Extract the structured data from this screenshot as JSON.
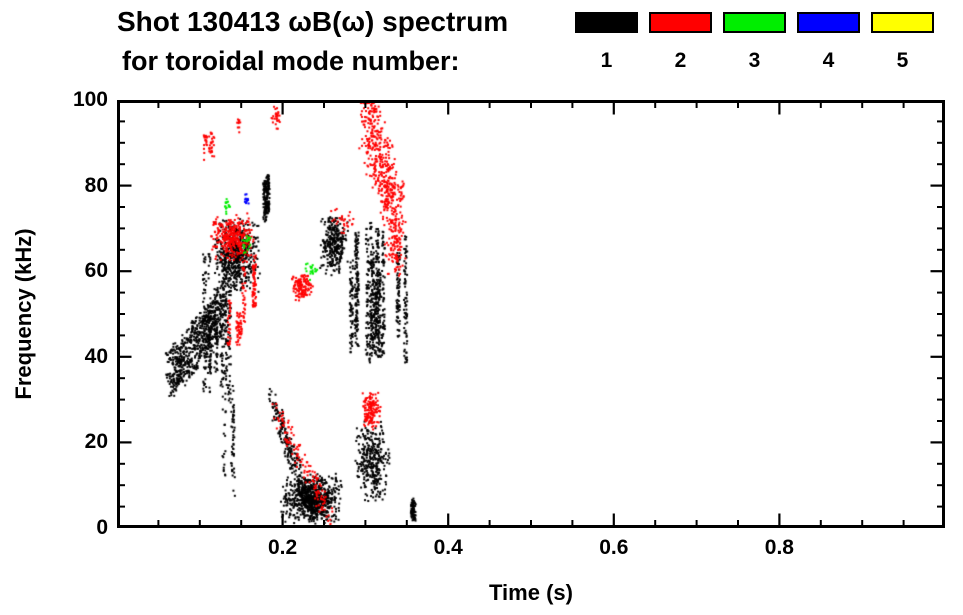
{
  "chart_data": {
    "type": "scatter",
    "title": "Shot 130413 ωB(ω) spectrum",
    "subtitle": "for toroidal mode number:",
    "xlabel": "Time (s)",
    "ylabel": "Frequency (kHz)",
    "xlim": [
      0,
      1.0
    ],
    "ylim": [
      0,
      100
    ],
    "x_major_ticks": {
      "values": [
        0.2,
        0.4,
        0.6,
        0.8
      ],
      "labels": [
        "0.2",
        "0.4",
        "0.6",
        "0.8"
      ]
    },
    "x_minor_step": 0.05,
    "y_major_ticks": {
      "values": [
        0,
        20,
        40,
        60,
        80,
        100
      ],
      "labels": [
        "0",
        "20",
        "40",
        "60",
        "80",
        "100"
      ]
    },
    "y_minor_step": 5,
    "legend": [
      {
        "mode": "1",
        "color": "#000000"
      },
      {
        "mode": "2",
        "color": "#ff0000"
      },
      {
        "mode": "3",
        "color": "#00ee00"
      },
      {
        "mode": "4",
        "color": "#0000ff"
      },
      {
        "mode": "5",
        "color": "#ffff00"
      }
    ],
    "series": [
      {
        "name": "toroidal mode n=1",
        "color": "#000000",
        "clusters": [
          {
            "kind": "line",
            "t": [
              0.063,
              0.125
            ],
            "f": [
              36,
              50
            ],
            "jt": 0.006,
            "jf": 5.5,
            "n": 650
          },
          {
            "kind": "streaks",
            "t": [
              0.1,
              0.145
            ],
            "f": [
              28,
              66
            ],
            "n": 350,
            "streaks": 8
          },
          {
            "kind": "blob",
            "t": [
              0.115,
              0.172
            ],
            "f": [
              55,
              73
            ],
            "n": 600
          },
          {
            "kind": "streaks",
            "t": [
              0.124,
              0.14
            ],
            "f": [
              3,
              36
            ],
            "n": 70,
            "streaks": 3
          },
          {
            "kind": "streaks",
            "t": [
              0.176,
              0.19
            ],
            "f": [
              68,
              86
            ],
            "n": 170,
            "streaks": 2
          },
          {
            "kind": "line",
            "t": [
              0.186,
              0.235
            ],
            "f": [
              30,
              4
            ],
            "jt": 0.004,
            "jf": 3,
            "n": 260
          },
          {
            "kind": "blob",
            "t": [
              0.196,
              0.274
            ],
            "f": [
              1,
              13
            ],
            "n": 700
          },
          {
            "kind": "blob",
            "t": [
              0.243,
              0.278
            ],
            "f": [
              59,
              74
            ],
            "n": 300
          },
          {
            "kind": "streaks",
            "t": [
              0.278,
              0.35
            ],
            "f": [
              34,
              72
            ],
            "n": 850,
            "streaks": 12
          },
          {
            "kind": "blob",
            "t": [
              0.285,
              0.33
            ],
            "f": [
              6,
              26
            ],
            "n": 330
          },
          {
            "kind": "streaks",
            "t": [
              0.343,
              0.358
            ],
            "f": [
              1,
              9
            ],
            "n": 90,
            "streaks": 2
          }
        ]
      },
      {
        "name": "toroidal mode n=2",
        "color": "#ff0000",
        "clusters": [
          {
            "kind": "streaks",
            "t": [
              0.1,
              0.118
            ],
            "f": [
              86,
              94
            ],
            "n": 45,
            "streaks": 3
          },
          {
            "kind": "blob",
            "t": [
              0.11,
              0.168
            ],
            "f": [
              62,
              74
            ],
            "n": 320
          },
          {
            "kind": "streaks",
            "t": [
              0.132,
              0.148
            ],
            "f": [
              38,
              56
            ],
            "n": 80,
            "streaks": 3
          },
          {
            "kind": "streaks",
            "t": [
              0.152,
              0.17
            ],
            "f": [
              48,
              68
            ],
            "n": 110,
            "streaks": 3
          },
          {
            "kind": "blob",
            "t": [
              0.142,
              0.149
            ],
            "f": [
              92,
              97
            ],
            "n": 10
          },
          {
            "kind": "blob",
            "t": [
              0.185,
              0.196
            ],
            "f": [
              93,
              99
            ],
            "n": 28
          },
          {
            "kind": "blob",
            "t": [
              0.208,
              0.236
            ],
            "f": [
              53,
              60
            ],
            "n": 130
          },
          {
            "kind": "line",
            "t": [
              0.19,
              0.256
            ],
            "f": [
              28,
              3
            ],
            "jt": 0.004,
            "jf": 2.5,
            "n": 130
          },
          {
            "kind": "blob",
            "t": [
              0.293,
              0.318
            ],
            "f": [
              23,
              33
            ],
            "n": 140
          },
          {
            "kind": "line",
            "t": [
              0.298,
              0.341
            ],
            "f": [
              97,
              71
            ],
            "jt": 0.007,
            "jf": 9,
            "n": 500
          },
          {
            "kind": "blob",
            "t": [
              0.322,
              0.346
            ],
            "f": [
              58,
              70
            ],
            "n": 60
          },
          {
            "kind": "blob",
            "t": [
              0.255,
              0.285
            ],
            "f": [
              68,
              76
            ],
            "n": 28
          }
        ]
      },
      {
        "name": "toroidal mode n=3",
        "color": "#00ee00",
        "clusters": [
          {
            "kind": "blob",
            "t": [
              0.127,
              0.136
            ],
            "f": [
              73,
              78
            ],
            "n": 16
          },
          {
            "kind": "blob",
            "t": [
              0.15,
              0.162
            ],
            "f": [
              64,
              70
            ],
            "n": 18
          },
          {
            "kind": "blob",
            "t": [
              0.225,
              0.243
            ],
            "f": [
              58,
              63
            ],
            "n": 20
          }
        ]
      },
      {
        "name": "toroidal mode n=4",
        "color": "#0000ff",
        "clusters": [
          {
            "kind": "blob",
            "t": [
              0.152,
              0.159
            ],
            "f": [
              75,
              79
            ],
            "n": 12
          }
        ]
      },
      {
        "name": "toroidal mode n=5",
        "color": "#ffff00",
        "clusters": []
      }
    ]
  }
}
